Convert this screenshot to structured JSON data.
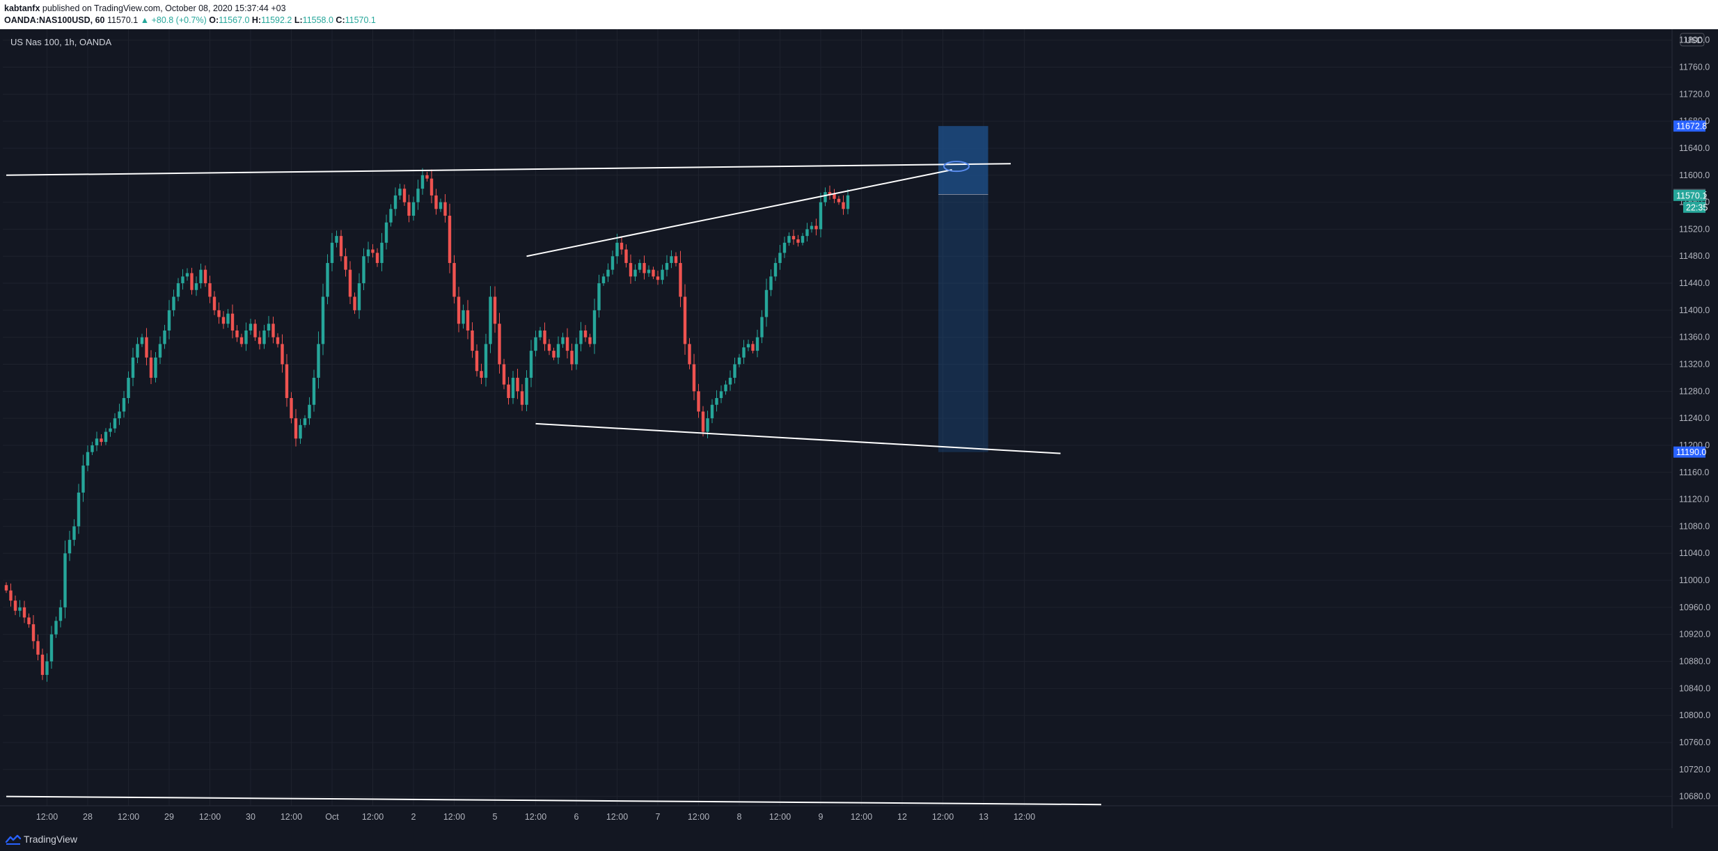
{
  "header": {
    "author": "kabtanfx",
    "published": "published on TradingView.com, October 08, 2020 15:37:44 +03",
    "symbol": "OANDA:NAS100USD, 60",
    "last": "11570.1",
    "change": "▲ +80.8 (+0.7%)",
    "o_label": "O:",
    "o_value": "11567.0",
    "h_label": "H:",
    "h_value": "11592.2",
    "l_label": "L:",
    "l_value": "11558.0",
    "c_label": "C:",
    "c_value": "11570.1"
  },
  "footer": {
    "brand": "TradingView",
    "logo_icon": "tradingview-logo-icon"
  },
  "colors": {
    "background": "#131722",
    "grid": "#1e222d",
    "axis_text": "#b2b5be",
    "up": "#26a69a",
    "down": "#ef5350",
    "trendline": "#ffffff",
    "zone": "#1e4f8a",
    "blue_tag": "#2962ff",
    "gray_tag": "#4c525e"
  },
  "chart_data": {
    "type": "candlestick",
    "title": "US Nas 100, 1h, OANDA",
    "currency": "USD",
    "y_ticks": [
      10680.0,
      10720.0,
      10760.0,
      10800.0,
      10840.0,
      10880.0,
      10920.0,
      10960.0,
      11000.0,
      11040.0,
      11080.0,
      11120.0,
      11160.0,
      11200.0,
      11240.0,
      11280.0,
      11320.0,
      11360.0,
      11400.0,
      11440.0,
      11480.0,
      11520.0,
      11560.0,
      11600.0,
      11640.0,
      11680.0,
      11720.0,
      11760.0,
      11800.0
    ],
    "ylim": [
      10660,
      11810
    ],
    "x_ticks": [
      "12:00",
      "28",
      "12:00",
      "29",
      "12:00",
      "30",
      "12:00",
      "Oct",
      "12:00",
      "2",
      "12:00",
      "5",
      "12:00",
      "6",
      "12:00",
      "7",
      "12:00",
      "8",
      "12:00",
      "9",
      "12:00",
      "12",
      "12:00",
      "13",
      "12:00"
    ],
    "x_tick_bar_index": [
      9,
      18,
      27,
      36,
      45,
      54,
      63,
      72,
      81,
      90,
      99,
      108,
      117,
      126,
      135,
      144,
      153,
      162,
      171,
      180,
      189,
      198,
      207,
      216,
      225
    ],
    "close": [
      10985,
      10970,
      10955,
      10960,
      10945,
      10935,
      10910,
      10890,
      10860,
      10880,
      10920,
      10940,
      10960,
      11040,
      11060,
      11080,
      11130,
      11170,
      11190,
      11200,
      11210,
      11205,
      11220,
      11225,
      11240,
      11250,
      11270,
      11300,
      11330,
      11350,
      11360,
      11330,
      11300,
      11330,
      11350,
      11370,
      11400,
      11420,
      11440,
      11450,
      11455,
      11430,
      11440,
      11460,
      11440,
      11420,
      11400,
      11390,
      11380,
      11395,
      11370,
      11360,
      11350,
      11370,
      11380,
      11360,
      11350,
      11370,
      11380,
      11360,
      11350,
      11320,
      11270,
      11240,
      11210,
      11230,
      11240,
      11260,
      11300,
      11350,
      11420,
      11470,
      11500,
      11510,
      11480,
      11460,
      11420,
      11400,
      11440,
      11480,
      11490,
      11485,
      11470,
      11500,
      11530,
      11550,
      11570,
      11580,
      11560,
      11540,
      11560,
      11580,
      11600,
      11595,
      11570,
      11550,
      11560,
      11540,
      11470,
      11420,
      11380,
      11400,
      11370,
      11340,
      11310,
      11300,
      11350,
      11420,
      11380,
      11320,
      11290,
      11270,
      11300,
      11280,
      11260,
      11300,
      11340,
      11360,
      11370,
      11350,
      11340,
      11330,
      11350,
      11360,
      11340,
      11320,
      11350,
      11370,
      11360,
      11350,
      11400,
      11440,
      11450,
      11460,
      11480,
      11500,
      11490,
      11470,
      11450,
      11460,
      11470,
      11455,
      11460,
      11450,
      11445,
      11460,
      11470,
      11480,
      11470,
      11420,
      11350,
      11320,
      11280,
      11250,
      11220,
      11240,
      11260,
      11270,
      11280,
      11290,
      11300,
      11320,
      11330,
      11345,
      11350,
      11340,
      11360,
      11390,
      11430,
      11450,
      11470,
      11485,
      11500,
      11510,
      11505,
      11500,
      11510,
      11520,
      11525,
      11520,
      11560,
      11575,
      11572,
      11565,
      11560,
      11550,
      11570.1
    ],
    "trendlines": [
      {
        "name": "top-flat-resistance",
        "points": [
          [
            0,
            11600
          ],
          [
            222,
            11617
          ]
        ]
      },
      {
        "name": "rising-channel-top",
        "points": [
          [
            115,
            11480
          ],
          [
            209,
            11608
          ]
        ]
      },
      {
        "name": "falling-channel-bottom",
        "points": [
          [
            117,
            11232
          ],
          [
            233,
            11188
          ]
        ]
      },
      {
        "name": "long-term-base",
        "points": [
          [
            0,
            10680
          ],
          [
            242,
            10668
          ]
        ]
      }
    ],
    "target_zone": {
      "from_bar": 206,
      "to_bar": 217,
      "top": 11672.8,
      "bottom": 11190.0,
      "entry": 11571.5
    },
    "price_tags": [
      {
        "value": 11672.8,
        "label": "11672.8",
        "style": "blue"
      },
      {
        "value": 11571.5,
        "label": "11571.5",
        "style": "gray"
      },
      {
        "value": 11570.1,
        "label": "11570.1",
        "style": "green",
        "countdown": "22:35"
      },
      {
        "value": 11190.0,
        "label": "11190.0",
        "style": "blue"
      }
    ]
  }
}
